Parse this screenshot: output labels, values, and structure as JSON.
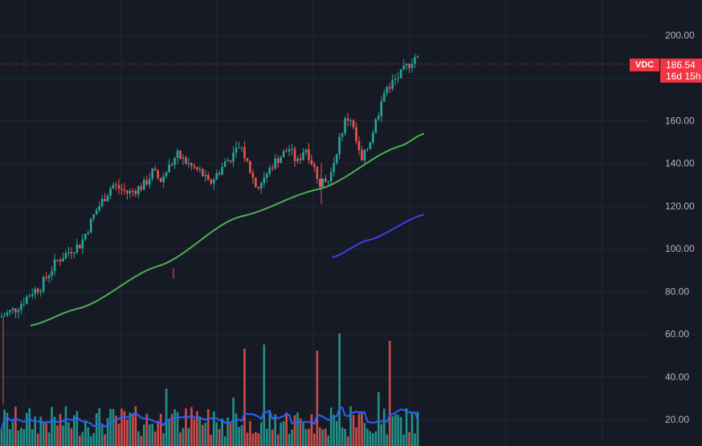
{
  "symbol": "VDC",
  "last_price": "186.54",
  "countdown": "16d 15h",
  "colors": {
    "up": "#26a69a",
    "down": "#ef5350",
    "ma_fast": "#4caf50",
    "ma_slow": "#3f3fe6",
    "volume_ma": "#2962ff",
    "background": "#161a25",
    "grid": "#232733",
    "price_line": "#f23645"
  },
  "chart_data": {
    "type": "candlestick",
    "title": "",
    "xlabel": "",
    "ylabel": "",
    "ylim": [
      6,
      212
    ],
    "y_ticks": [
      "200.00",
      "180.00",
      "160.00",
      "140.00",
      "120.00",
      "100.00",
      "80.00",
      "60.00",
      "40.00",
      "20.00"
    ],
    "y_tick_values": [
      200,
      180,
      160,
      140,
      120,
      100,
      80,
      60,
      40,
      20
    ],
    "grid": true,
    "last_value": 186.54,
    "num_bars": 150,
    "close_anchors": [
      [
        0,
        68
      ],
      [
        10,
        72
      ],
      [
        20,
        80
      ],
      [
        25,
        82
      ],
      [
        35,
        94
      ],
      [
        45,
        100
      ],
      [
        50,
        102
      ],
      [
        60,
        118
      ],
      [
        70,
        130
      ],
      [
        75,
        128
      ],
      [
        80,
        126
      ],
      [
        90,
        130
      ],
      [
        95,
        136
      ],
      [
        100,
        132
      ],
      [
        110,
        144
      ],
      [
        120,
        138
      ],
      [
        125,
        136
      ],
      [
        130,
        130
      ],
      [
        140,
        140
      ],
      [
        150,
        148
      ],
      [
        160,
        128
      ],
      [
        170,
        140
      ],
      [
        180,
        147
      ],
      [
        185,
        140
      ],
      [
        190,
        148
      ],
      [
        200,
        130
      ],
      [
        205,
        132
      ],
      [
        210,
        148
      ],
      [
        215,
        160
      ],
      [
        218,
        162
      ],
      [
        225,
        140
      ],
      [
        230,
        150
      ],
      [
        240,
        175
      ],
      [
        250,
        182
      ],
      [
        258,
        190
      ],
      [
        262,
        188
      ],
      [
        265,
        186.54
      ]
    ],
    "ma_fast": {
      "x": [
        20,
        50,
        100,
        150,
        200,
        250,
        265
      ],
      "y": [
        64,
        72,
        92,
        115,
        128,
        148,
        154
      ]
    },
    "ma_slow": {
      "x": [
        208,
        230,
        265
      ],
      "y": [
        96,
        104,
        116
      ]
    },
    "volume_spikes_index": [
      103,
      145,
      152,
      165,
      198,
      212,
      235,
      242
    ]
  }
}
